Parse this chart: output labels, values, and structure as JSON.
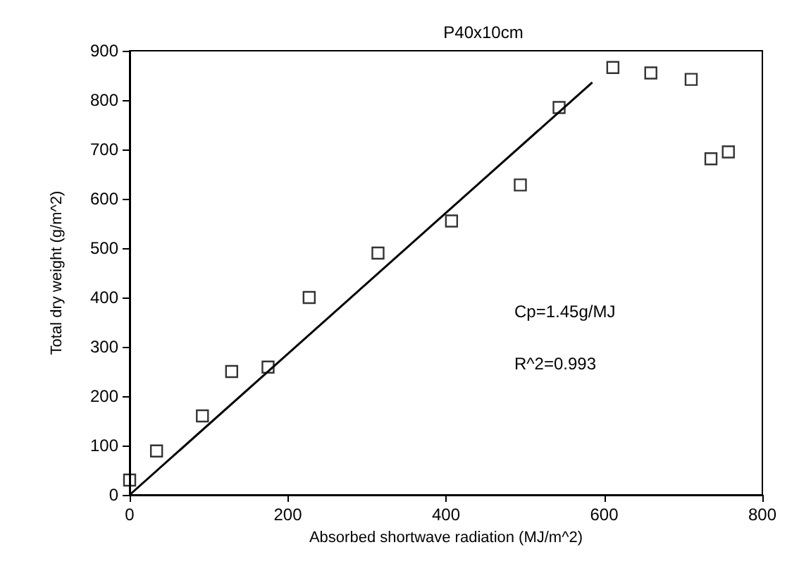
{
  "chart_data": {
    "type": "scatter",
    "title": "P40x10cm",
    "xlabel": "Absorbed shortwave radiation (MJ/m^2)",
    "ylabel": "Total dry weight (g/m^2)",
    "grid": false,
    "xlim": [
      0,
      800
    ],
    "xticks": [
      0,
      200,
      400,
      600,
      800
    ],
    "ylim": [
      0,
      900
    ],
    "yticks": [
      0,
      100,
      200,
      300,
      400,
      500,
      600,
      700,
      800,
      900
    ],
    "annotations": [
      "Cp=1.45g/MJ",
      "R^2=0.993"
    ],
    "series": [
      {
        "color": "#000000",
        "marker": "square",
        "x": [
          0,
          34,
          92,
          129,
          175,
          227,
          314,
          407,
          494,
          543,
          611,
          659,
          710,
          735,
          757
        ],
        "values": [
          30,
          89,
          160,
          250,
          259,
          400,
          490,
          555,
          628,
          785,
          866,
          855,
          842,
          681,
          695
        ]
      },
      {
        "type": "line",
        "color": "#000000",
        "marker": "none",
        "x": [
          0,
          585
        ],
        "values": [
          0,
          836
        ]
      }
    ]
  }
}
